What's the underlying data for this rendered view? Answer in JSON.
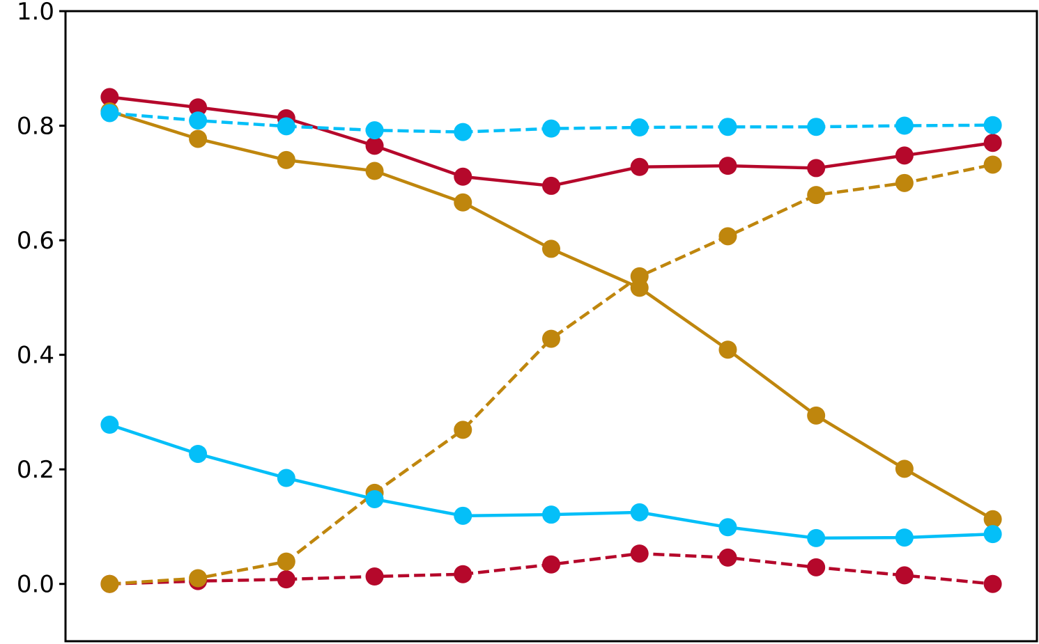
{
  "chart_data": {
    "type": "line",
    "title": "",
    "xlabel": "",
    "ylabel": "",
    "x": [
      0,
      1,
      2,
      3,
      4,
      5,
      6,
      7,
      8,
      9,
      10
    ],
    "xlim": [
      -0.5,
      10.5
    ],
    "ylim": [
      -0.1,
      1.0
    ],
    "yticks": [
      0.0,
      0.2,
      0.4,
      0.6,
      0.8,
      1.0
    ],
    "ytick_labels": [
      "0.0",
      "0.2",
      "0.4",
      "0.6",
      "0.8",
      "1.0"
    ],
    "grid": false,
    "legend": "none",
    "series": [
      {
        "color": "#b5082b",
        "linestyle": "solid",
        "values": [
          0.85,
          0.832,
          0.813,
          0.765,
          0.711,
          0.695,
          0.728,
          0.73,
          0.726,
          0.748,
          0.77
        ]
      },
      {
        "color": "#b5082b",
        "linestyle": "dashed",
        "values": [
          0.0,
          0.005,
          0.008,
          0.013,
          0.017,
          0.034,
          0.053,
          0.046,
          0.029,
          0.015,
          0.0
        ]
      },
      {
        "color": "#bf860d",
        "linestyle": "solid",
        "values": [
          0.825,
          0.777,
          0.74,
          0.721,
          0.666,
          0.585,
          0.517,
          0.409,
          0.294,
          0.201,
          0.113
        ]
      },
      {
        "color": "#bf860d",
        "linestyle": "dashed",
        "values": [
          0.0,
          0.01,
          0.039,
          0.159,
          0.269,
          0.428,
          0.537,
          0.607,
          0.679,
          0.7,
          0.732
        ]
      },
      {
        "color": "#04bff8",
        "linestyle": "solid",
        "values": [
          0.278,
          0.227,
          0.185,
          0.148,
          0.119,
          0.121,
          0.125,
          0.099,
          0.08,
          0.081,
          0.087
        ]
      },
      {
        "color": "#04bff8",
        "linestyle": "dashed",
        "values": [
          0.822,
          0.809,
          0.799,
          0.792,
          0.789,
          0.795,
          0.797,
          0.798,
          0.798,
          0.8,
          0.801
        ]
      }
    ]
  }
}
